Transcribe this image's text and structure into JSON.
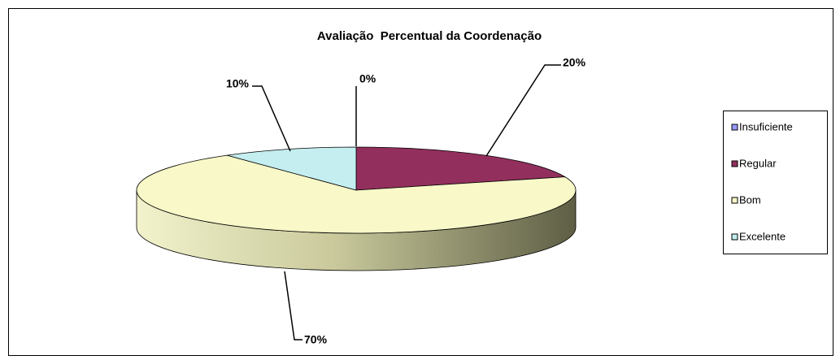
{
  "chart_data": {
    "type": "pie",
    "title": "Avaliação  Percentual da Coordenação",
    "categories": [
      "Insuficiente",
      "Regular",
      "Bom",
      "Excelente"
    ],
    "values": [
      0,
      20,
      70,
      10
    ],
    "value_labels": [
      "0%",
      "20%",
      "70%",
      "10%"
    ],
    "colors": [
      "#9999ff",
      "#932f5d",
      "#f8f8c8",
      "#c4eef0"
    ],
    "legend": "right"
  }
}
